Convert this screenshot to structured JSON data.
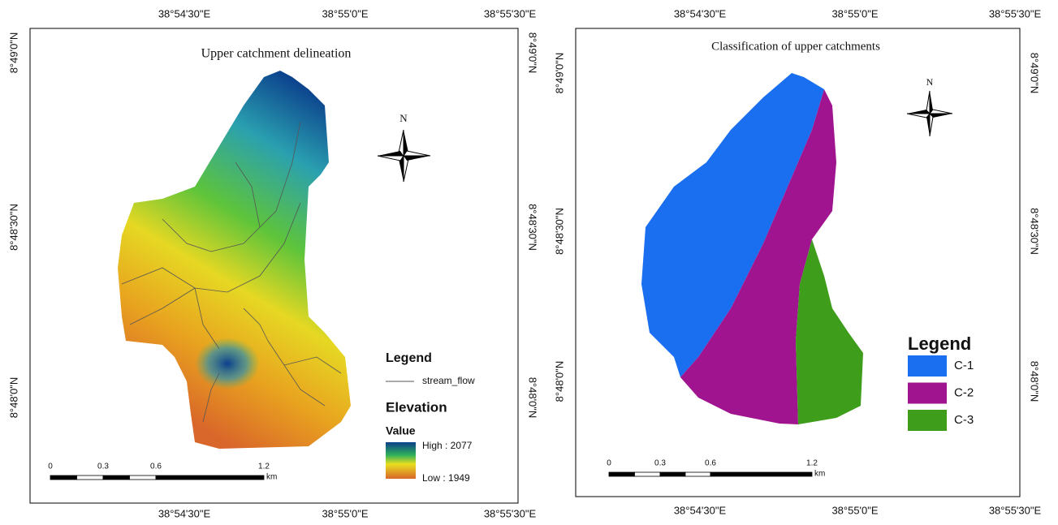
{
  "left": {
    "title": "Upper catchment delineation",
    "top_labels": [
      "38°54'30\"E",
      "38°55'0\"E",
      "38°55'30\"E"
    ],
    "bottom_labels": [
      "38°54'30\"E",
      "38°55'0\"E",
      "38°55'30\"E"
    ],
    "left_labels": [
      "8°49'0\"N",
      "8°48'30\"N",
      "8°48'0\"N"
    ],
    "right_labels": [
      "8°49'0\"N",
      "8°48'30\"N",
      "8°48'0\"N"
    ],
    "north": "N",
    "legend": {
      "title": "Legend",
      "stream": "stream_flow",
      "elevation": "Elevation",
      "value": "Value",
      "high": "High : 2077",
      "low": "Low : 1949"
    },
    "scale": {
      "labels": [
        "0",
        "0.3",
        "0.6",
        "1.2"
      ],
      "unit": "km"
    }
  },
  "right": {
    "title": "Classification of upper catchments",
    "top_labels": [
      "38°54'30\"E",
      "38°55'0\"E",
      "38°55'30\"E"
    ],
    "bottom_labels": [
      "38°54'30\"E",
      "38°55'0\"E",
      "38°55'30\"E"
    ],
    "left_labels": [
      "8°49'0\"N",
      "8°48'30\"N",
      "8°48'0\"N"
    ],
    "right_labels": [
      "8°49'0\"N",
      "8°48'30\"N",
      "8°48'0\"N"
    ],
    "north": "N",
    "legend": {
      "title": "Legend",
      "items": [
        {
          "label": "C-1",
          "color": "#1a6ff0"
        },
        {
          "label": "C-2",
          "color": "#a0158f"
        },
        {
          "label": "C-3",
          "color": "#3e9e1c"
        }
      ]
    },
    "scale": {
      "labels": [
        "0",
        "0.3",
        "0.6",
        "1.2"
      ],
      "unit": "km"
    }
  }
}
